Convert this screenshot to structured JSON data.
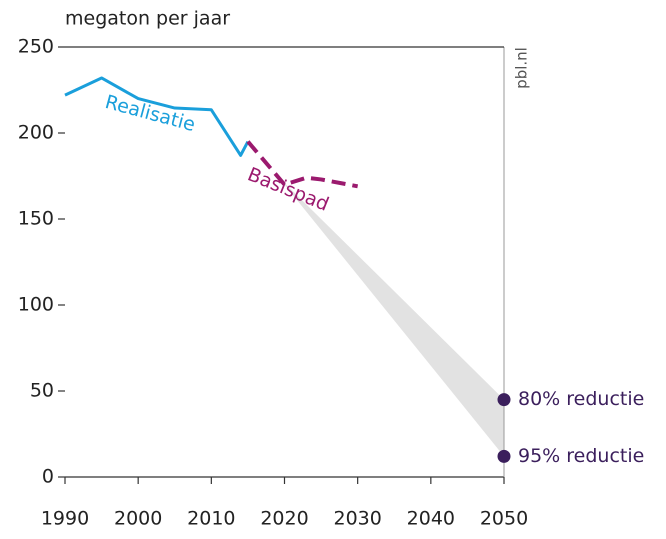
{
  "chart_data": {
    "type": "line",
    "y_label": "megaton per jaar",
    "watermark": "pbl.nl",
    "xlim": [
      1990,
      2050
    ],
    "xticks": [
      1990,
      2000,
      2010,
      2020,
      2030,
      2040,
      2050
    ],
    "ylim": [
      0,
      250
    ],
    "yticks": [
      0,
      50,
      100,
      150,
      200,
      250
    ],
    "series": [
      {
        "name": "Realisatie",
        "color": "#1a9fdb",
        "dashed": false,
        "x": [
          1990,
          1995,
          2000,
          2005,
          2010,
          2014,
          2015
        ],
        "values": [
          222,
          232,
          220,
          214.5,
          213.5,
          187,
          195
        ]
      },
      {
        "name": "Basispad",
        "color": "#9b1a6e",
        "dashed": true,
        "x": [
          2015,
          2020,
          2023,
          2025,
          2030
        ],
        "values": [
          195,
          170,
          174,
          173,
          169
        ]
      }
    ],
    "band": {
      "color": "#e2e2e2",
      "x": [
        2020,
        2050
      ],
      "upper": [
        171,
        45
      ],
      "lower": [
        170,
        12
      ]
    },
    "points": [
      {
        "name": "80% reductie",
        "x": 2050,
        "value": 45,
        "color": "#3b1f5c"
      },
      {
        "name": "95% reductie",
        "x": 2050,
        "value": 12,
        "color": "#3b1f5c"
      }
    ]
  }
}
